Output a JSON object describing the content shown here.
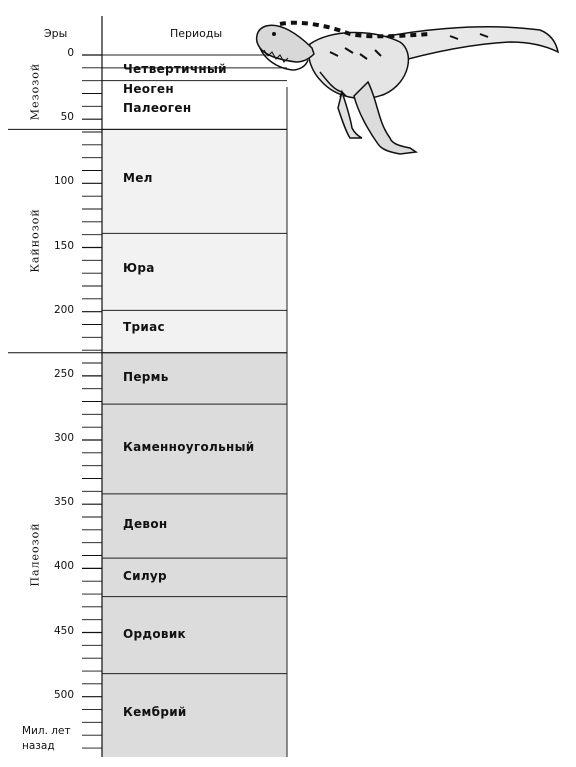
{
  "header": {
    "eras_label": "Эры",
    "periods_label": "Периоды"
  },
  "eras": [
    {
      "name": "Мезозой",
      "start": 0,
      "end": 58
    },
    {
      "name": "Кайнозой",
      "start": 58,
      "end": 232
    },
    {
      "name": "Палеозой",
      "start": 232,
      "end": 547
    }
  ],
  "periods": [
    {
      "name": "Четвертичный",
      "start": 0,
      "end": 10,
      "shade": "#ffffff",
      "label_at": 12
    },
    {
      "name": "Неоген",
      "start": 10,
      "end": 20,
      "shade": "#ffffff",
      "label_at": 27
    },
    {
      "name": "Палеоген",
      "start": 20,
      "end": 58,
      "shade": "#ffffff",
      "label_at": 42
    },
    {
      "name": "Мел",
      "start": 58,
      "end": 139,
      "shade": "#f2f2f2",
      "label_at": 97
    },
    {
      "name": "Юра",
      "start": 139,
      "end": 199,
      "shade": "#f2f2f2",
      "label_at": 167
    },
    {
      "name": "Триас",
      "start": 199,
      "end": 232,
      "shade": "#f2f2f2",
      "label_at": 213
    },
    {
      "name": "Пермь",
      "start": 232,
      "end": 272,
      "shade": "#dcdcdc",
      "label_at": 252
    },
    {
      "name": "Каменноугольный",
      "start": 272,
      "end": 342,
      "shade": "#dcdcdc",
      "label_at": 306
    },
    {
      "name": "Девон",
      "start": 342,
      "end": 392,
      "shade": "#dcdcdc",
      "label_at": 366
    },
    {
      "name": "Силур",
      "start": 392,
      "end": 422,
      "shade": "#dcdcdc",
      "label_at": 407
    },
    {
      "name": "Ордовик",
      "start": 422,
      "end": 482,
      "shade": "#dcdcdc",
      "label_at": 452
    },
    {
      "name": "Кембрий",
      "start": 482,
      "end": 547,
      "shade": "#dcdcdc",
      "label_at": 513
    }
  ],
  "scale": {
    "min": 0,
    "max": 547,
    "major_step": 50,
    "minor_step": 10,
    "labels": [
      "0",
      "50",
      "100",
      "150",
      "200",
      "250",
      "300",
      "350",
      "400",
      "450",
      "500"
    ]
  },
  "unit_label": [
    "Мил. лет",
    "назад"
  ],
  "illustration": "tyrannosaurus-drawing"
}
